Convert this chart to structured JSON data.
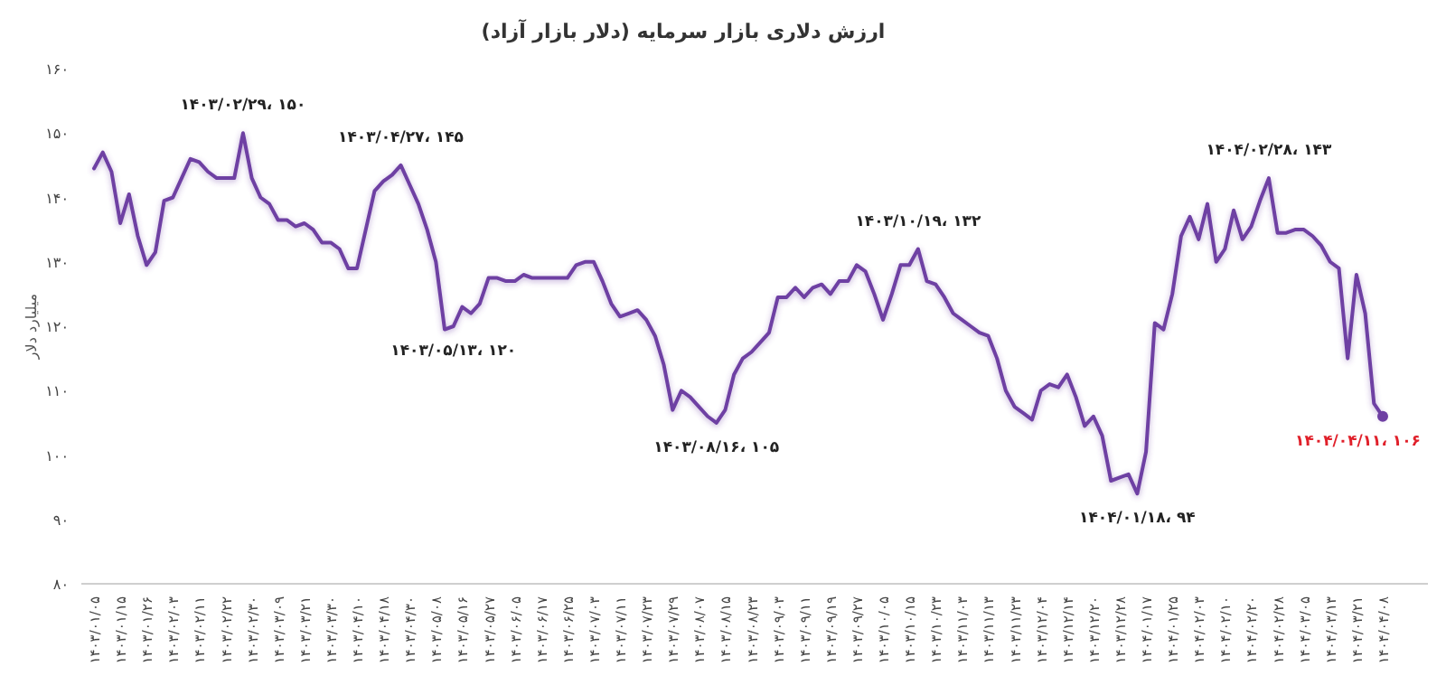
{
  "chart_data": {
    "type": "line",
    "title": "ارزش دلاری بازار سرمایه (دلار بازار آزاد)",
    "ylabel": "میلیارد دلار",
    "categories": [
      "۱۴۰۳/۰۱/۰۵",
      null,
      null,
      "۱۴۰۳/۰۱/۱۵",
      null,
      null,
      "۱۴۰۳/۰۱/۲۶",
      null,
      null,
      "۱۴۰۳/۰۲/۰۳",
      null,
      null,
      "۱۴۰۳/۰۲/۱۱",
      null,
      null,
      "۱۴۰۳/۰۲/۲۲",
      null,
      null,
      "۱۴۰۳/۰۲/۳۰",
      null,
      null,
      "۱۴۰۳/۰۳/۰۹",
      null,
      null,
      "۱۴۰۳/۰۳/۲۱",
      null,
      null,
      "۱۴۰۳/۰۳/۳۰",
      null,
      null,
      "۱۴۰۳/۰۴/۱۰",
      null,
      null,
      "۱۴۰۳/۰۴/۱۸",
      null,
      null,
      "۱۴۰۳/۰۴/۳۰",
      null,
      null,
      "۱۴۰۳/۰۵/۰۸",
      null,
      null,
      "۱۴۰۳/۰۵/۱۶",
      null,
      null,
      "۱۴۰۳/۰۵/۲۷",
      null,
      null,
      "۱۴۰۳/۰۶/۰۵",
      null,
      null,
      "۱۴۰۳/۰۶/۱۷",
      null,
      null,
      "۱۴۰۳/۰۶/۲۵",
      null,
      null,
      "۱۴۰۳/۰۷/۰۳",
      null,
      null,
      "۱۴۰۳/۰۷/۱۱",
      null,
      null,
      "۱۴۰۳/۰۷/۲۳",
      null,
      null,
      "۱۴۰۳/۰۷/۲۹",
      null,
      null,
      "۱۴۰۳/۰۸/۰۷",
      null,
      null,
      "۱۴۰۳/۰۸/۱۵",
      null,
      null,
      "۱۴۰۳/۰۸/۲۳",
      null,
      null,
      "۱۴۰۳/۰۹/۰۳",
      null,
      null,
      "۱۴۰۳/۰۹/۱۱",
      null,
      null,
      "۱۴۰۳/۰۹/۱۹",
      null,
      null,
      "۱۴۰۳/۰۹/۲۷",
      null,
      null,
      "۱۴۰۳/۱۰/۰۵",
      null,
      null,
      "۱۴۰۳/۱۰/۱۵",
      null,
      null,
      "۱۴۰۳/۱۰/۲۳",
      null,
      null,
      "۱۴۰۳/۱۱/۰۳",
      null,
      null,
      "۱۴۰۳/۱۱/۱۳",
      null,
      null,
      "۱۴۰۳/۱۱/۲۳",
      null,
      null,
      "۱۴۰۳/۱۲/۰۴",
      null,
      null,
      "۱۴۰۳/۱۲/۱۴",
      null,
      null,
      "۱۴۰۳/۱۲/۲۰",
      null,
      null,
      "۱۴۰۳/۱۲/۲۸",
      null,
      null,
      "۱۴۰۴/۰۱/۱۷",
      null,
      null,
      "۱۴۰۴/۰۱/۲۵",
      null,
      null,
      "۱۴۰۴/۰۲/۰۳",
      null,
      null,
      "۱۴۰۴/۰۲/۱۰",
      null,
      null,
      "۱۴۰۴/۰۲/۲۰",
      null,
      null,
      "۱۴۰۴/۰۲/۲۸",
      null,
      null,
      "۱۴۰۴/۰۳/۰۵",
      null,
      null,
      "۱۴۰۴/۰۳/۱۳",
      null,
      null,
      "۱۴۰۴/۰۳/۲۱",
      null,
      null,
      "۱۴۰۴/۰۴/۰۸"
    ],
    "series": [
      {
        "color": "#6e3fa3",
        "values": [
          144.5,
          147,
          144,
          136,
          140.5,
          134,
          129.5,
          131.5,
          139.5,
          140,
          143,
          146,
          145.5,
          144,
          143,
          143,
          143,
          150,
          143,
          140,
          139,
          136.5,
          136.5,
          135.5,
          136,
          135,
          133,
          133,
          132,
          129,
          129,
          135,
          141,
          142.5,
          143.5,
          145,
          142,
          139,
          135,
          130,
          119.5,
          120,
          123,
          122,
          123.5,
          127.5,
          127.5,
          127,
          127,
          128,
          127.5,
          127.5,
          127.5,
          127.5,
          127.5,
          129.5,
          130,
          130,
          127,
          123.5,
          121.5,
          122,
          122.5,
          121,
          118.5,
          114,
          107,
          110,
          109,
          107.5,
          106,
          105,
          107,
          112.5,
          115,
          116,
          117.5,
          119,
          124.5,
          124.5,
          126,
          124.5,
          126,
          126.5,
          125,
          127,
          127,
          129.5,
          128.5,
          125,
          121,
          125,
          129.5,
          129.5,
          132,
          127,
          126.5,
          124.5,
          122,
          121,
          120,
          119,
          118.5,
          115,
          110,
          107.5,
          106.5,
          105.5,
          110,
          111,
          110.5,
          112.5,
          109,
          104.5,
          106,
          103,
          96,
          96.5,
          97,
          94,
          100.5,
          120.5,
          119.5,
          125,
          134,
          137,
          133.5,
          139,
          130,
          132,
          138,
          133.5,
          135.5,
          139.5,
          143,
          134.5,
          134.5,
          135,
          135,
          134,
          132.5,
          130,
          129,
          115,
          128,
          122,
          108,
          106
        ],
        "value_labels": [
          null,
          null,
          null,
          null,
          null,
          null,
          null,
          null,
          null,
          null,
          null,
          null,
          null,
          null,
          null,
          null,
          null,
          "۱۴۰۳/۰۲/۲۹، ۱۵۰",
          null,
          null,
          null,
          null,
          null,
          null,
          null,
          null,
          null,
          null,
          null,
          null,
          null,
          null,
          null,
          null,
          null,
          "۱۴۰۳/۰۴/۲۷، ۱۴۵",
          null,
          null,
          null,
          null,
          null,
          "۱۴۰۳/۰۵/۱۳، ۱۲۰",
          null,
          null,
          null,
          null,
          null,
          null,
          null,
          null,
          null,
          null,
          null,
          null,
          null,
          null,
          null,
          null,
          null,
          null,
          null,
          null,
          null,
          null,
          null,
          null,
          null,
          null,
          null,
          null,
          null,
          "۱۴۰۳/۰۸/۱۶، ۱۰۵",
          null,
          null,
          null,
          null,
          null,
          null,
          null,
          null,
          null,
          null,
          null,
          null,
          null,
          null,
          null,
          null,
          null,
          null,
          null,
          null,
          null,
          null,
          "۱۴۰۳/۱۰/۱۹، ۱۳۲",
          null,
          null,
          null,
          null,
          null,
          null,
          null,
          null,
          null,
          null,
          null,
          null,
          null,
          null,
          null,
          null,
          null,
          null,
          null,
          null,
          null,
          null,
          null,
          null,
          "۱۴۰۴/۰۱/۱۸، ۹۴",
          null,
          null,
          null,
          null,
          null,
          null,
          null,
          null,
          null,
          null,
          null,
          null,
          null,
          null,
          "۱۴۰۴/۰۲/۲۸، ۱۴۳",
          null,
          null,
          null,
          null,
          null,
          null,
          null,
          null,
          null,
          null,
          null,
          null,
          "۱۴۰۴/۰۴/۱۱، ۱۰۶"
        ]
      }
    ],
    "ylim": [
      80,
      160
    ],
    "yticks": [
      {
        "value": 80,
        "label": "۸۰"
      },
      {
        "value": 90,
        "label": "۹۰"
      },
      {
        "value": 100,
        "label": "۱۰۰"
      },
      {
        "value": 110,
        "label": "۱۱۰"
      },
      {
        "value": 120,
        "label": "۱۲۰"
      },
      {
        "value": 130,
        "label": "۱۳۰"
      },
      {
        "value": 140,
        "label": "۱۴۰"
      },
      {
        "value": 150,
        "label": "۱۵۰"
      },
      {
        "value": 160,
        "label": "۱۶۰"
      }
    ]
  }
}
